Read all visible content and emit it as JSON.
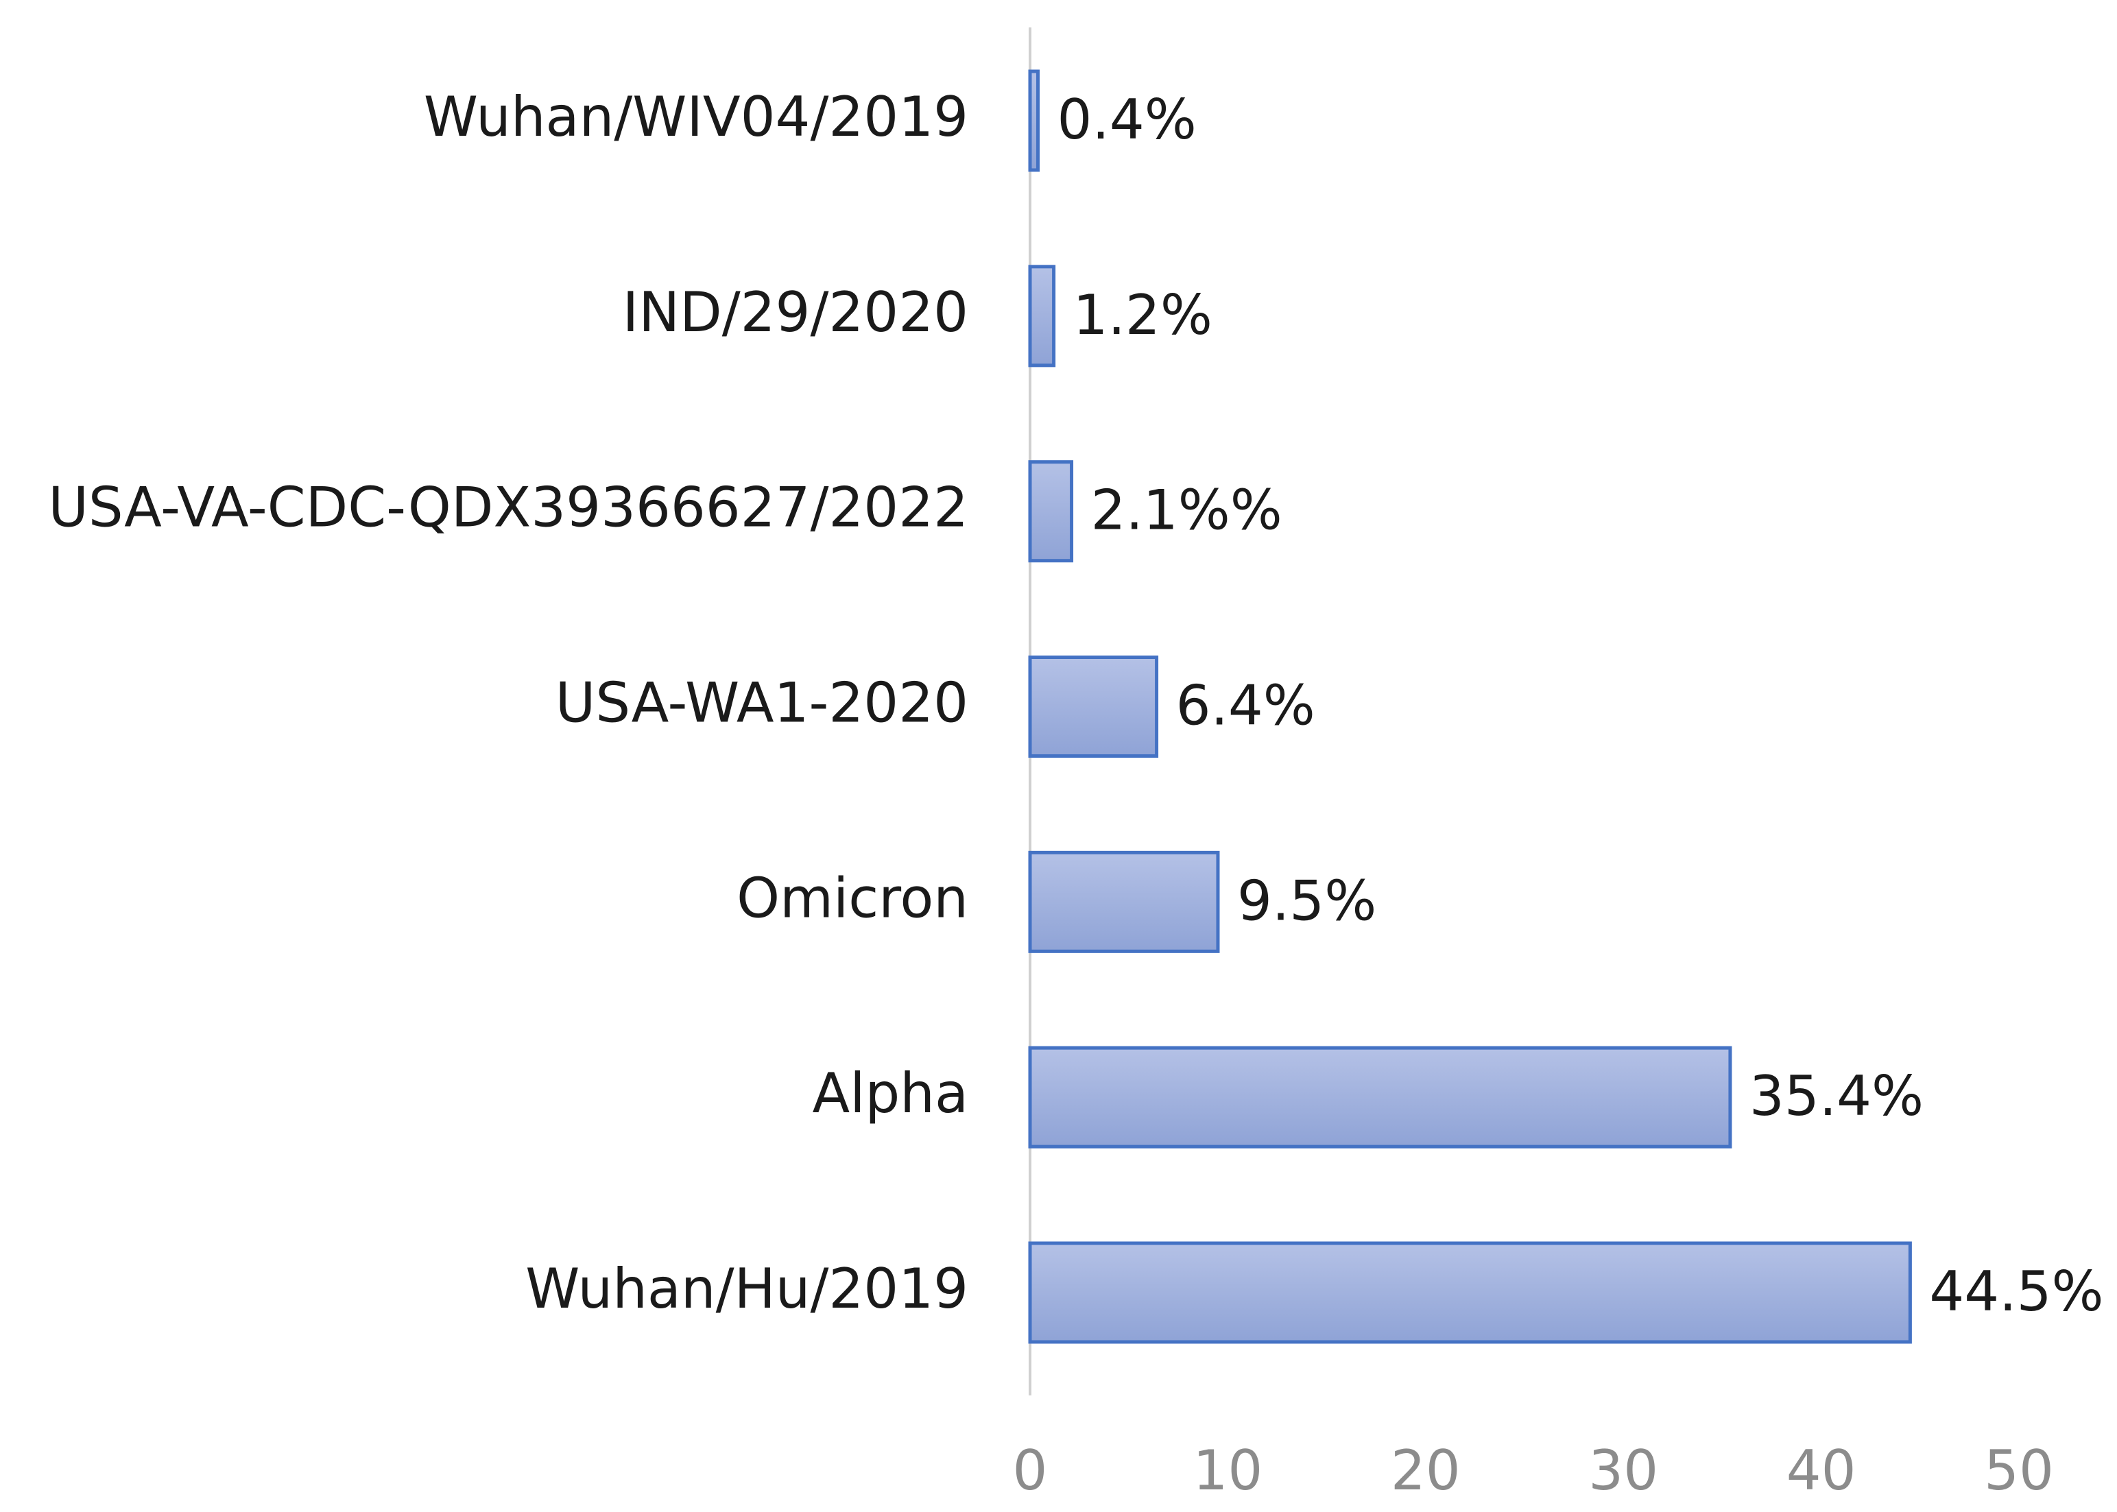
{
  "chart_data": {
    "type": "hbar",
    "categories": [
      "Wuhan/WIV04/2019",
      "IND/29/2020",
      "USA-VA-CDC-QDX39366627/2022",
      "USA-WA1-2020",
      "Omicron",
      "Alpha",
      "Wuhan/Hu/2019"
    ],
    "values": [
      0.4,
      1.2,
      2.1,
      6.4,
      9.5,
      35.4,
      44.5
    ],
    "value_labels": [
      "0.4%",
      "1.2%",
      "2.1%%",
      "6.4%",
      "9.5%",
      "35.4%",
      "44.5%"
    ],
    "color": "#a3b2de",
    "edge_color": "#4472c4",
    "xlim": [
      0,
      50
    ],
    "xticks": [
      0,
      10,
      20,
      30,
      40,
      50
    ],
    "grid": false
  }
}
